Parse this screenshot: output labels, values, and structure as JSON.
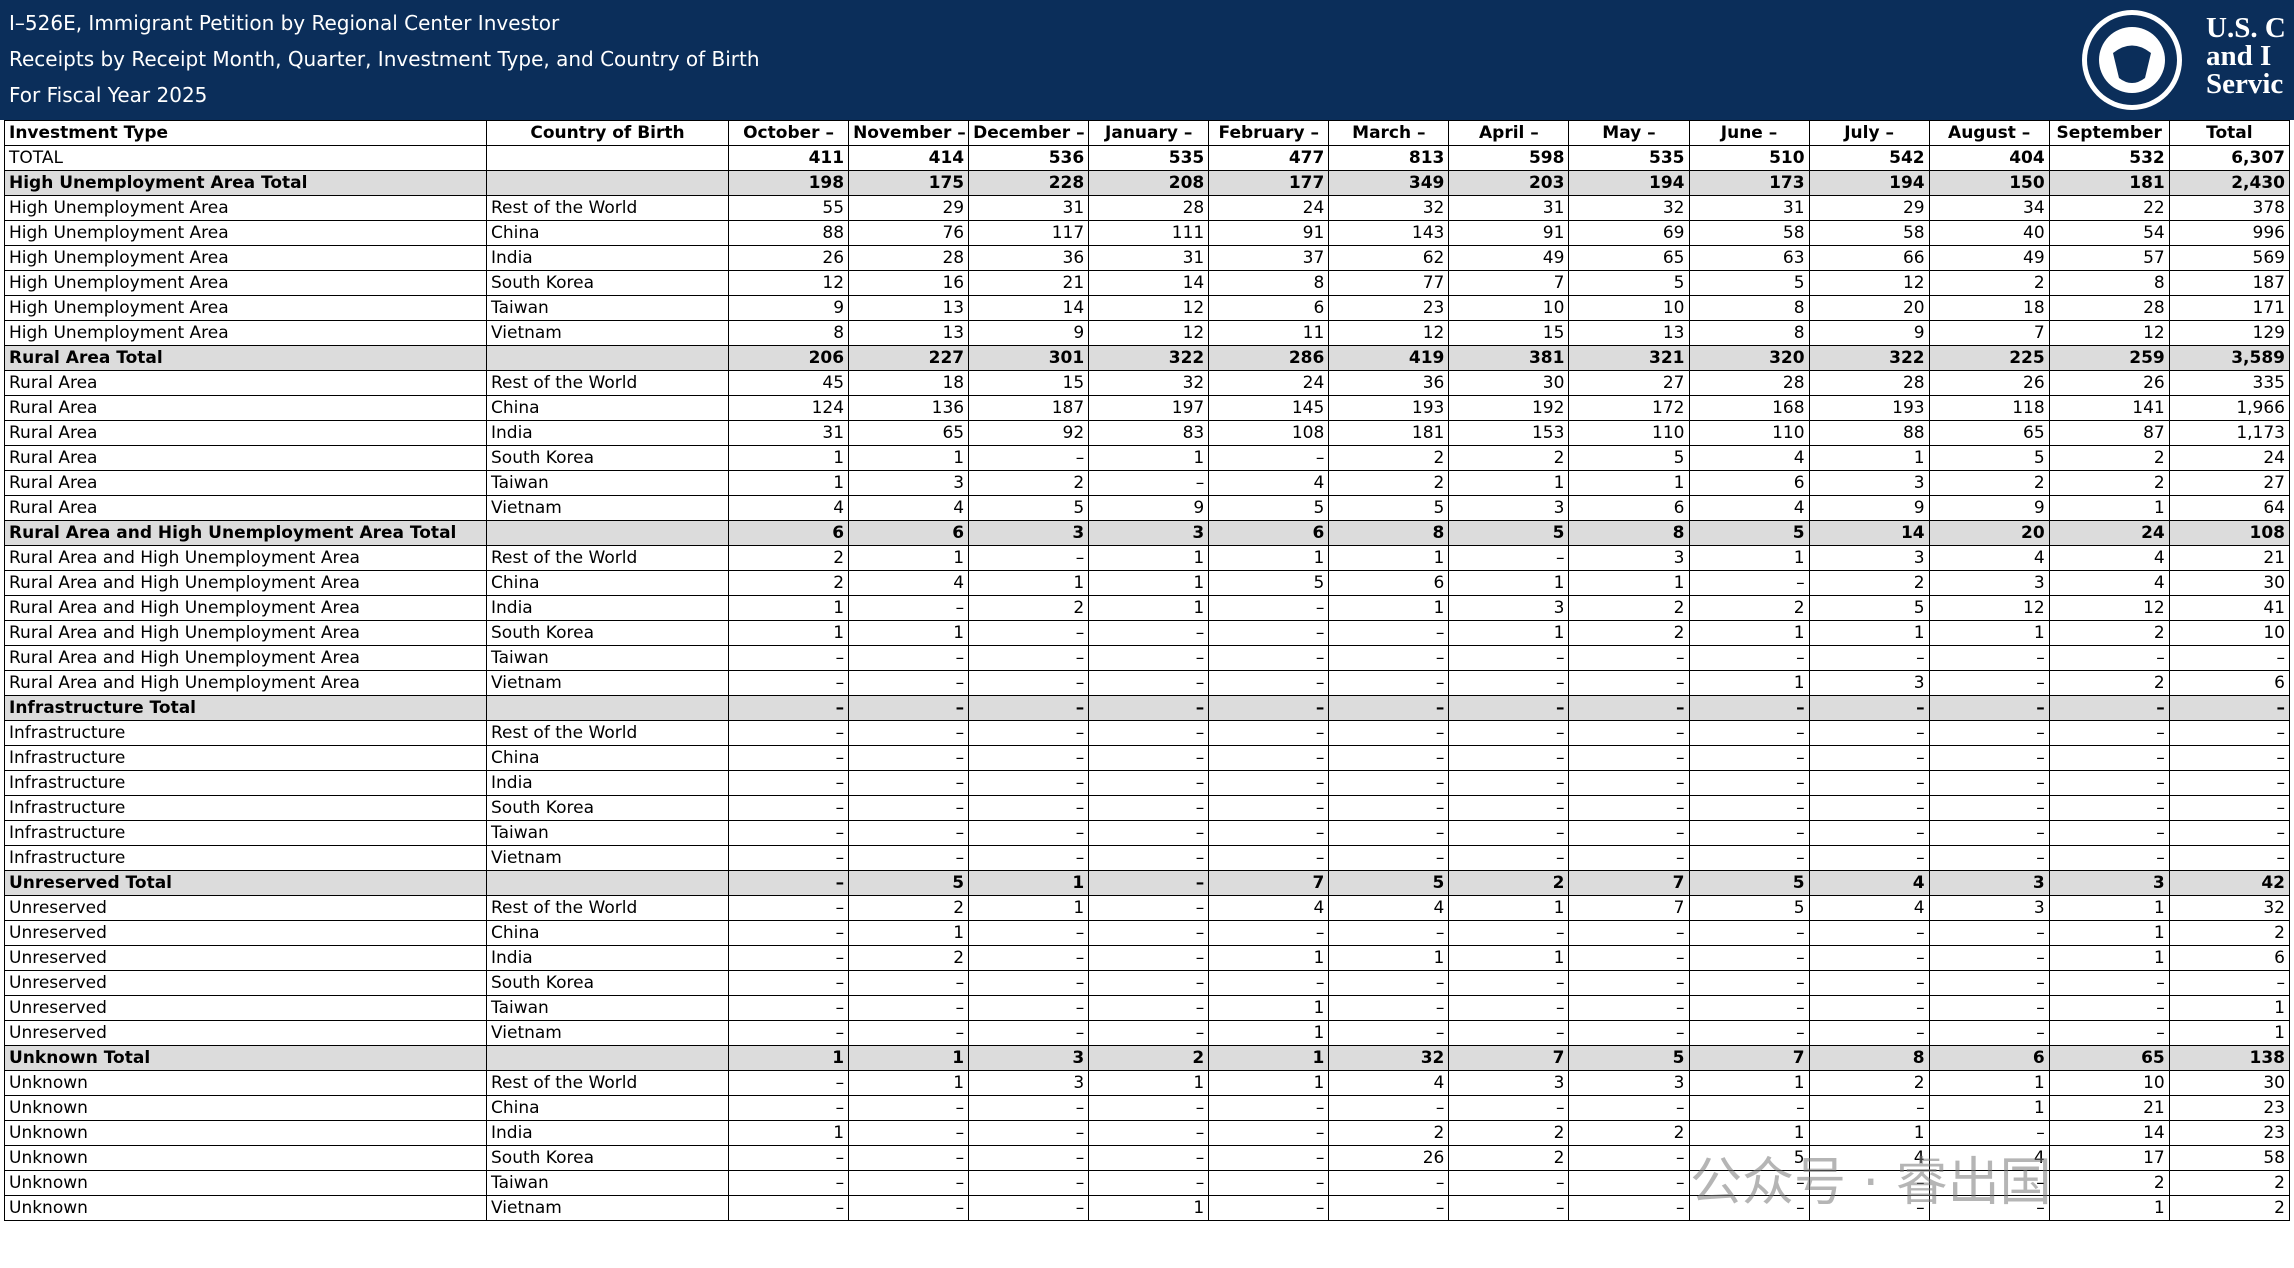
{
  "header": {
    "title": "I–526E, Immigrant Petition by Regional Center Investor",
    "subtitle": "Receipts by Receipt Month, Quarter, Investment Type, and Country of Birth",
    "period": "For Fiscal Year 2025",
    "logo_lines": [
      "U.S. C",
      "and I",
      "Servic"
    ]
  },
  "watermark": "公众号 · 睿出国",
  "table": {
    "columns": [
      "Investment Type",
      "Country of Birth",
      "October –",
      "November –",
      "December –",
      "January –",
      "February –",
      "March –",
      "April –",
      "May –",
      "June –",
      "July –",
      "August –",
      "September",
      "Total"
    ],
    "rows": [
      [
        "TOTAL",
        "",
        "411",
        "414",
        "536",
        "535",
        "477",
        "813",
        "598",
        "535",
        "510",
        "542",
        "404",
        "532",
        "6,307"
      ],
      [
        "High Unemployment Area Total",
        "",
        "198",
        "175",
        "228",
        "208",
        "177",
        "349",
        "203",
        "194",
        "173",
        "194",
        "150",
        "181",
        "2,430"
      ],
      [
        "High Unemployment Area",
        "Rest of the World",
        "55",
        "29",
        "31",
        "28",
        "24",
        "32",
        "31",
        "32",
        "31",
        "29",
        "34",
        "22",
        "378"
      ],
      [
        "High Unemployment Area",
        "China",
        "88",
        "76",
        "117",
        "111",
        "91",
        "143",
        "91",
        "69",
        "58",
        "58",
        "40",
        "54",
        "996"
      ],
      [
        "High Unemployment Area",
        "India",
        "26",
        "28",
        "36",
        "31",
        "37",
        "62",
        "49",
        "65",
        "63",
        "66",
        "49",
        "57",
        "569"
      ],
      [
        "High Unemployment Area",
        "South Korea",
        "12",
        "16",
        "21",
        "14",
        "8",
        "77",
        "7",
        "5",
        "5",
        "12",
        "2",
        "8",
        "187"
      ],
      [
        "High Unemployment Area",
        "Taiwan",
        "9",
        "13",
        "14",
        "12",
        "6",
        "23",
        "10",
        "10",
        "8",
        "20",
        "18",
        "28",
        "171"
      ],
      [
        "High Unemployment Area",
        "Vietnam",
        "8",
        "13",
        "9",
        "12",
        "11",
        "12",
        "15",
        "13",
        "8",
        "9",
        "7",
        "12",
        "129"
      ],
      [
        "Rural Area Total",
        "",
        "206",
        "227",
        "301",
        "322",
        "286",
        "419",
        "381",
        "321",
        "320",
        "322",
        "225",
        "259",
        "3,589"
      ],
      [
        "Rural Area",
        "Rest of the World",
        "45",
        "18",
        "15",
        "32",
        "24",
        "36",
        "30",
        "27",
        "28",
        "28",
        "26",
        "26",
        "335"
      ],
      [
        "Rural Area",
        "China",
        "124",
        "136",
        "187",
        "197",
        "145",
        "193",
        "192",
        "172",
        "168",
        "193",
        "118",
        "141",
        "1,966"
      ],
      [
        "Rural Area",
        "India",
        "31",
        "65",
        "92",
        "83",
        "108",
        "181",
        "153",
        "110",
        "110",
        "88",
        "65",
        "87",
        "1,173"
      ],
      [
        "Rural Area",
        "South Korea",
        "1",
        "1",
        "–",
        "1",
        "–",
        "2",
        "2",
        "5",
        "4",
        "1",
        "5",
        "2",
        "24"
      ],
      [
        "Rural Area",
        "Taiwan",
        "1",
        "3",
        "2",
        "–",
        "4",
        "2",
        "1",
        "1",
        "6",
        "3",
        "2",
        "2",
        "27"
      ],
      [
        "Rural Area",
        "Vietnam",
        "4",
        "4",
        "5",
        "9",
        "5",
        "5",
        "3",
        "6",
        "4",
        "9",
        "9",
        "1",
        "64"
      ],
      [
        "Rural Area and High Unemployment Area Total",
        "",
        "6",
        "6",
        "3",
        "3",
        "6",
        "8",
        "5",
        "8",
        "5",
        "14",
        "20",
        "24",
        "108"
      ],
      [
        "Rural Area and High Unemployment Area",
        "Rest of the World",
        "2",
        "1",
        "–",
        "1",
        "1",
        "1",
        "–",
        "3",
        "1",
        "3",
        "4",
        "4",
        "21"
      ],
      [
        "Rural Area and High Unemployment Area",
        "China",
        "2",
        "4",
        "1",
        "1",
        "5",
        "6",
        "1",
        "1",
        "–",
        "2",
        "3",
        "4",
        "30"
      ],
      [
        "Rural Area and High Unemployment Area",
        "India",
        "1",
        "–",
        "2",
        "1",
        "–",
        "1",
        "3",
        "2",
        "2",
        "5",
        "12",
        "12",
        "41"
      ],
      [
        "Rural Area and High Unemployment Area",
        "South Korea",
        "1",
        "1",
        "–",
        "–",
        "–",
        "–",
        "1",
        "2",
        "1",
        "1",
        "1",
        "2",
        "10"
      ],
      [
        "Rural Area and High Unemployment Area",
        "Taiwan",
        "–",
        "–",
        "–",
        "–",
        "–",
        "–",
        "–",
        "–",
        "–",
        "–",
        "–",
        "–",
        "–"
      ],
      [
        "Rural Area and High Unemployment Area",
        "Vietnam",
        "–",
        "–",
        "–",
        "–",
        "–",
        "–",
        "–",
        "–",
        "1",
        "3",
        "–",
        "2",
        "6"
      ],
      [
        "Infrastructure Total",
        "",
        "–",
        "–",
        "–",
        "–",
        "–",
        "–",
        "–",
        "–",
        "–",
        "–",
        "–",
        "–",
        "–"
      ],
      [
        "Infrastructure",
        "Rest of the World",
        "–",
        "–",
        "–",
        "–",
        "–",
        "–",
        "–",
        "–",
        "–",
        "–",
        "–",
        "–",
        "–"
      ],
      [
        "Infrastructure",
        "China",
        "–",
        "–",
        "–",
        "–",
        "–",
        "–",
        "–",
        "–",
        "–",
        "–",
        "–",
        "–",
        "–"
      ],
      [
        "Infrastructure",
        "India",
        "–",
        "–",
        "–",
        "–",
        "–",
        "–",
        "–",
        "–",
        "–",
        "–",
        "–",
        "–",
        "–"
      ],
      [
        "Infrastructure",
        "South Korea",
        "–",
        "–",
        "–",
        "–",
        "–",
        "–",
        "–",
        "–",
        "–",
        "–",
        "–",
        "–",
        "–"
      ],
      [
        "Infrastructure",
        "Taiwan",
        "–",
        "–",
        "–",
        "–",
        "–",
        "–",
        "–",
        "–",
        "–",
        "–",
        "–",
        "–",
        "–"
      ],
      [
        "Infrastructure",
        "Vietnam",
        "–",
        "–",
        "–",
        "–",
        "–",
        "–",
        "–",
        "–",
        "–",
        "–",
        "–",
        "–",
        "–"
      ],
      [
        "Unreserved Total",
        "",
        "–",
        "5",
        "1",
        "–",
        "7",
        "5",
        "2",
        "7",
        "5",
        "4",
        "3",
        "3",
        "42"
      ],
      [
        "Unreserved",
        "Rest of the World",
        "–",
        "2",
        "1",
        "–",
        "4",
        "4",
        "1",
        "7",
        "5",
        "4",
        "3",
        "1",
        "32"
      ],
      [
        "Unreserved",
        "China",
        "–",
        "1",
        "–",
        "–",
        "–",
        "–",
        "–",
        "–",
        "–",
        "–",
        "–",
        "1",
        "2"
      ],
      [
        "Unreserved",
        "India",
        "–",
        "2",
        "–",
        "–",
        "1",
        "1",
        "1",
        "–",
        "–",
        "–",
        "–",
        "1",
        "6"
      ],
      [
        "Unreserved",
        "South Korea",
        "–",
        "–",
        "–",
        "–",
        "–",
        "–",
        "–",
        "–",
        "–",
        "–",
        "–",
        "–",
        "–"
      ],
      [
        "Unreserved",
        "Taiwan",
        "–",
        "–",
        "–",
        "–",
        "1",
        "–",
        "–",
        "–",
        "–",
        "–",
        "–",
        "–",
        "1"
      ],
      [
        "Unreserved",
        "Vietnam",
        "–",
        "–",
        "–",
        "–",
        "1",
        "–",
        "–",
        "–",
        "–",
        "–",
        "–",
        "–",
        "1"
      ],
      [
        "Unknown Total",
        "",
        "1",
        "1",
        "3",
        "2",
        "1",
        "32",
        "7",
        "5",
        "7",
        "8",
        "6",
        "65",
        "138"
      ],
      [
        "Unknown",
        "Rest of the World",
        "–",
        "1",
        "3",
        "1",
        "1",
        "4",
        "3",
        "3",
        "1",
        "2",
        "1",
        "10",
        "30"
      ],
      [
        "Unknown",
        "China",
        "–",
        "–",
        "–",
        "–",
        "–",
        "–",
        "–",
        "–",
        "–",
        "–",
        "1",
        "21",
        "23"
      ],
      [
        "Unknown",
        "India",
        "1",
        "–",
        "–",
        "–",
        "–",
        "2",
        "2",
        "2",
        "1",
        "1",
        "–",
        "14",
        "23"
      ],
      [
        "Unknown",
        "South Korea",
        "–",
        "–",
        "–",
        "–",
        "–",
        "26",
        "2",
        "–",
        "5",
        "4",
        "4",
        "17",
        "58"
      ],
      [
        "Unknown",
        "Taiwan",
        "–",
        "–",
        "–",
        "–",
        "–",
        "–",
        "–",
        "–",
        "–",
        "–",
        "–",
        "2",
        "2"
      ],
      [
        "Unknown",
        "Vietnam",
        "–",
        "–",
        "–",
        "1",
        "–",
        "–",
        "–",
        "–",
        "–",
        "–",
        "–",
        "1",
        "2"
      ]
    ]
  }
}
